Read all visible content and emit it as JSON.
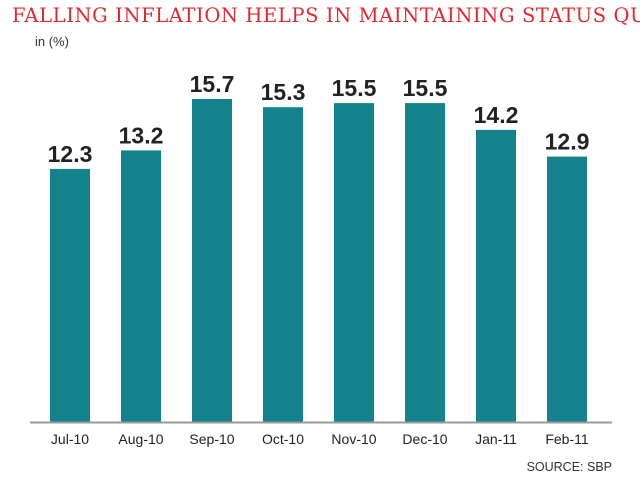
{
  "chart_data": {
    "type": "bar",
    "title": "FALLING INFLATION HELPS IN MAINTAINING STATUS QUO",
    "ylabel": "in (%)",
    "xlabel": "",
    "categories": [
      "Jul-10",
      "Aug-10",
      "Sep-10",
      "Oct-10",
      "Nov-10",
      "Dec-10",
      "Jan-11",
      "Feb-11"
    ],
    "values": [
      12.3,
      13.2,
      15.7,
      15.3,
      15.5,
      15.5,
      14.2,
      12.9
    ],
    "value_labels": [
      "12.3",
      "13.2",
      "15.7",
      "15.3",
      "15.5",
      "15.5",
      "14.2",
      "12.9"
    ],
    "ylim": [
      0,
      15.7
    ],
    "grid": false,
    "legend": "none",
    "bar_color": "#13828c",
    "axis_color": "#9a9a9a",
    "source": "SOURCE: SBP"
  }
}
